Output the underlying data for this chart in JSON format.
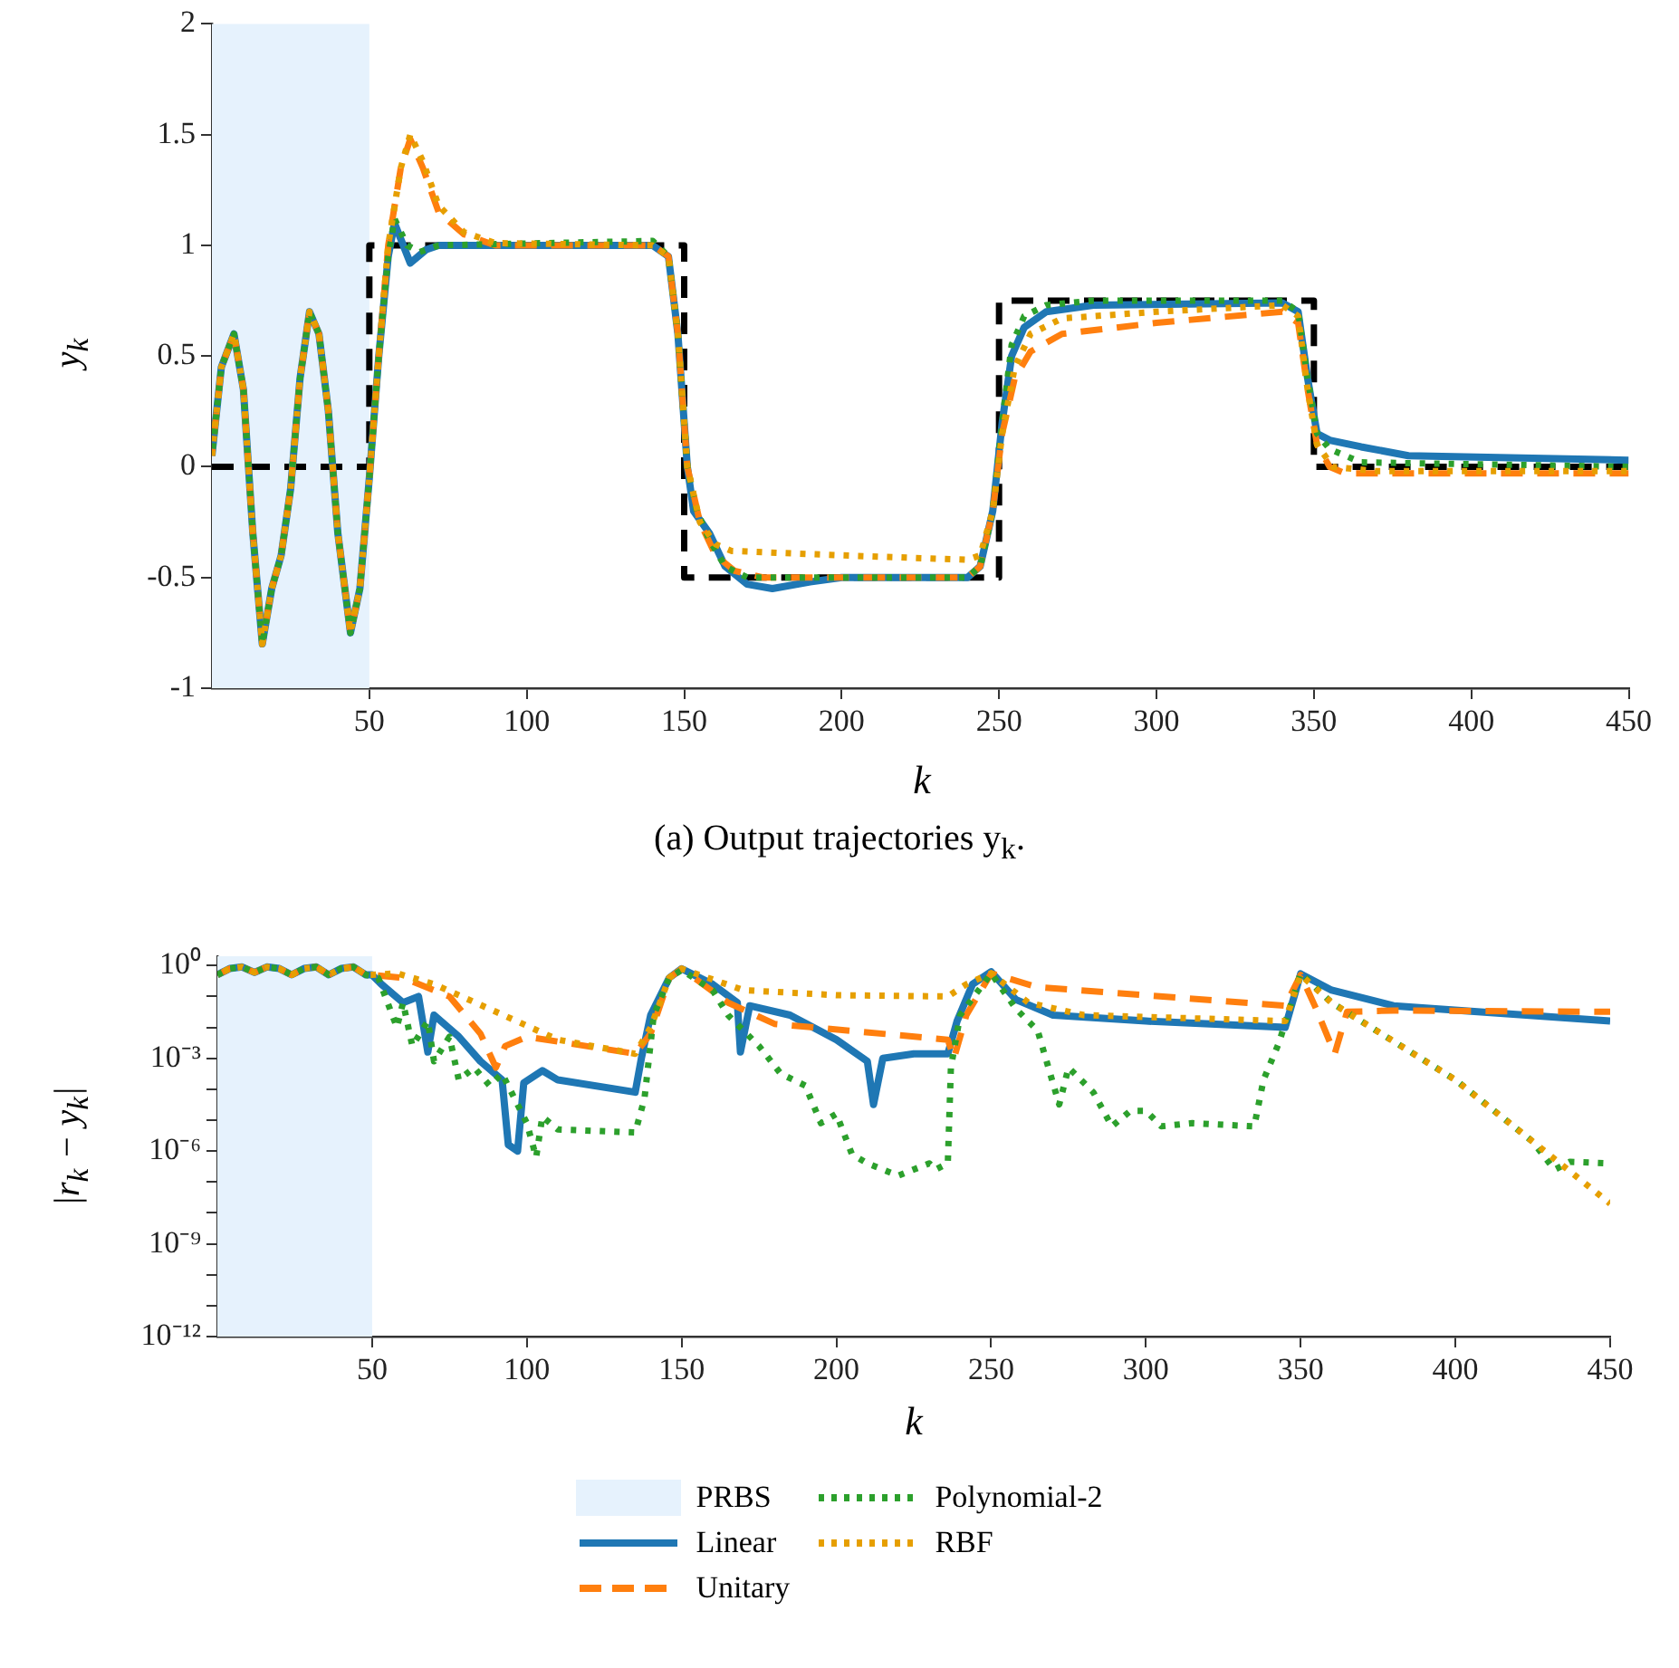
{
  "chart_data": [
    {
      "type": "line",
      "xlabel": "k",
      "ylabel": "y$_{k}$",
      "annotations": [
        "(a) Output trajectories y$_{k}$."
      ],
      "xlim": [
        0,
        450
      ],
      "ylim": [
        -1,
        2
      ],
      "xticks": [
        50,
        100,
        150,
        200,
        250,
        300,
        350,
        400,
        450
      ],
      "yticks": [
        -1,
        -0.5,
        0,
        0.5,
        1,
        1.5,
        2
      ],
      "legend": false,
      "bands": [
        {
          "axis": "x",
          "from": 0,
          "to": 50,
          "color": "#e6f2fd"
        }
      ],
      "series": [
        {
          "color": "#000000",
          "line_style": "dashed",
          "x": [
            0,
            50,
            50,
            150,
            150,
            250,
            250,
            350,
            350,
            450
          ],
          "values": [
            0,
            0,
            1,
            1,
            -0.5,
            -0.5,
            0.75,
            0.75,
            0,
            0
          ]
        },
        {
          "color": "#1f77b4",
          "line_style": "solid",
          "x": [
            0,
            3,
            7,
            10,
            13,
            16,
            19,
            22,
            25,
            28,
            31,
            34,
            37,
            40,
            44,
            47,
            50,
            53,
            56,
            58,
            63,
            68,
            72,
            140,
            145,
            148,
            151,
            153,
            158,
            163,
            170,
            178,
            190,
            200,
            240,
            244,
            248,
            251,
            254,
            258,
            265,
            280,
            340,
            345,
            348,
            351,
            355,
            365,
            380,
            450
          ],
          "values": [
            0.05,
            0.45,
            0.6,
            0.35,
            -0.3,
            -0.8,
            -0.55,
            -0.4,
            -0.1,
            0.4,
            0.7,
            0.6,
            0.25,
            -0.3,
            -0.75,
            -0.55,
            -0.05,
            0.5,
            0.95,
            1.1,
            0.92,
            0.98,
            1,
            1,
            0.95,
            0.6,
            0,
            -0.2,
            -0.3,
            -0.45,
            -0.53,
            -0.55,
            -0.52,
            -0.5,
            -0.5,
            -0.45,
            -0.2,
            0.2,
            0.5,
            0.63,
            0.7,
            0.73,
            0.74,
            0.7,
            0.4,
            0.15,
            0.12,
            0.09,
            0.05,
            0.03
          ]
        },
        {
          "color": "#ff7f0e",
          "line_style": "dashed",
          "x": [
            0,
            3,
            7,
            10,
            13,
            16,
            19,
            22,
            25,
            28,
            31,
            34,
            37,
            40,
            44,
            47,
            50,
            53,
            56,
            60,
            63,
            67,
            72,
            80,
            90,
            140,
            145,
            148,
            151,
            155,
            160,
            166,
            175,
            240,
            244,
            248,
            251,
            255,
            260,
            270,
            300,
            340,
            345,
            348,
            351,
            355,
            360,
            450
          ],
          "values": [
            0.05,
            0.45,
            0.6,
            0.35,
            -0.3,
            -0.8,
            -0.55,
            -0.4,
            -0.1,
            0.4,
            0.7,
            0.6,
            0.25,
            -0.3,
            -0.75,
            -0.55,
            -0.05,
            0.5,
            1,
            1.35,
            1.48,
            1.35,
            1.15,
            1.05,
            1,
            1,
            0.95,
            0.6,
            0,
            -0.25,
            -0.4,
            -0.47,
            -0.5,
            -0.5,
            -0.45,
            -0.2,
            0.15,
            0.4,
            0.52,
            0.6,
            0.65,
            0.7,
            0.65,
            0.35,
            0.1,
            0,
            -0.03,
            -0.03
          ]
        },
        {
          "color": "#2ca02c",
          "line_style": "dotted",
          "x": [
            0,
            3,
            7,
            10,
            13,
            16,
            19,
            22,
            25,
            28,
            31,
            34,
            37,
            40,
            44,
            47,
            50,
            53,
            56,
            58,
            62,
            66,
            72,
            140,
            145,
            148,
            151,
            154,
            158,
            163,
            170,
            240,
            244,
            248,
            251,
            254,
            258,
            265,
            280,
            340,
            345,
            348,
            351,
            355,
            365,
            450
          ],
          "values": [
            0.05,
            0.45,
            0.6,
            0.35,
            -0.3,
            -0.8,
            -0.55,
            -0.4,
            -0.1,
            0.4,
            0.7,
            0.6,
            0.25,
            -0.3,
            -0.75,
            -0.55,
            -0.05,
            0.5,
            0.95,
            1.12,
            1,
            0.97,
            1,
            1.02,
            0.95,
            0.6,
            0,
            -0.2,
            -0.33,
            -0.45,
            -0.5,
            -0.5,
            -0.45,
            -0.2,
            0.2,
            0.55,
            0.68,
            0.73,
            0.75,
            0.75,
            0.7,
            0.4,
            0.15,
            0.08,
            0.02,
            0
          ]
        },
        {
          "color": "#e69f00",
          "line_style": "dotted",
          "x": [
            0,
            3,
            7,
            10,
            13,
            16,
            19,
            22,
            25,
            28,
            31,
            34,
            37,
            40,
            44,
            47,
            50,
            53,
            56,
            60,
            63,
            67,
            72,
            80,
            90,
            140,
            145,
            148,
            151,
            155,
            160,
            165,
            200,
            240,
            244,
            248,
            251,
            255,
            260,
            270,
            300,
            340,
            345,
            348,
            351,
            356,
            370,
            450
          ],
          "values": [
            0.05,
            0.45,
            0.6,
            0.35,
            -0.3,
            -0.8,
            -0.55,
            -0.4,
            -0.1,
            0.4,
            0.7,
            0.6,
            0.25,
            -0.3,
            -0.75,
            -0.55,
            -0.05,
            0.5,
            1,
            1.35,
            1.5,
            1.38,
            1.18,
            1.06,
            1.01,
            1,
            0.95,
            0.6,
            0,
            -0.25,
            -0.35,
            -0.38,
            -0.4,
            -0.42,
            -0.4,
            -0.2,
            0.15,
            0.45,
            0.6,
            0.67,
            0.7,
            0.73,
            0.68,
            0.35,
            0.1,
            0,
            -0.02,
            -0.02
          ]
        }
      ]
    },
    {
      "type": "line",
      "xlabel": "k",
      "ylabel": "|r$_{k}$ − y$_{k}$|",
      "log": "y",
      "xlim": [
        0,
        450
      ],
      "ylim": [
        1e-12,
        2
      ],
      "xticks": [
        50,
        100,
        150,
        200,
        250,
        300,
        350,
        400,
        450
      ],
      "yticks": [
        {
          "value": 1,
          "label": "10⁰"
        },
        {
          "value": 0.1,
          "label": null
        },
        {
          "value": 0.01,
          "label": null
        },
        {
          "value": 0.001,
          "label": "10⁻³"
        },
        {
          "value": 0.0001,
          "label": null
        },
        {
          "value": 1e-05,
          "label": null
        },
        {
          "value": 1e-06,
          "label": "10⁻⁶"
        },
        {
          "value": 1e-07,
          "label": null
        },
        {
          "value": 1e-08,
          "label": null
        },
        {
          "value": 1e-09,
          "label": "10⁻⁹"
        },
        {
          "value": 1e-10,
          "label": null
        },
        {
          "value": 1e-11,
          "label": null
        },
        {
          "value": 1e-12,
          "label": "10⁻¹²"
        }
      ],
      "legend": "bottom",
      "bands": [
        {
          "axis": "x",
          "from": 0,
          "to": 50,
          "label": "PRBS",
          "color": "#e6f2fd"
        }
      ],
      "series": [
        {
          "name": "Linear",
          "color": "#1f77b4",
          "line_style": "solid",
          "x": [
            0,
            4,
            8,
            12,
            16,
            20,
            24,
            28,
            32,
            36,
            40,
            44,
            48,
            50,
            53,
            60,
            65,
            68,
            70,
            78,
            85,
            92,
            94,
            97,
            99,
            105,
            110,
            135,
            137,
            140,
            146,
            150,
            160,
            168,
            169,
            172,
            185,
            200,
            210,
            212,
            215,
            225,
            236,
            239,
            244,
            250,
            258,
            270,
            300,
            345,
            350,
            360,
            380,
            450
          ],
          "values": [
            0.5,
            0.8,
            0.9,
            0.6,
            0.9,
            0.8,
            0.5,
            0.8,
            0.9,
            0.5,
            0.8,
            0.9,
            0.5,
            0.5,
            0.25,
            0.063,
            0.1,
            0.0016,
            0.025,
            0.005,
            0.0008,
            0.0002,
            1.6e-06,
            1e-06,
            0.00016,
            0.0004,
            0.0002,
            8e-05,
            0.001,
            0.025,
            0.4,
            0.79,
            0.25,
            0.063,
            0.0016,
            0.05,
            0.025,
            0.004,
            0.0008,
            3.2e-05,
            0.001,
            0.0014,
            0.0014,
            0.016,
            0.25,
            0.63,
            0.079,
            0.025,
            0.016,
            0.01,
            0.54,
            0.16,
            0.05,
            0.016
          ]
        },
        {
          "name": "Unitary",
          "color": "#ff7f0e",
          "line_style": "dashed",
          "x": [
            0,
            4,
            8,
            12,
            16,
            20,
            24,
            28,
            32,
            36,
            40,
            44,
            48,
            50,
            60,
            75,
            85,
            90,
            93,
            100,
            135,
            140,
            146,
            150,
            165,
            180,
            236,
            238,
            242,
            250,
            265,
            345,
            350,
            355,
            361,
            365,
            380,
            450
          ],
          "values": [
            0.5,
            0.8,
            0.9,
            0.6,
            0.9,
            0.8,
            0.5,
            0.8,
            0.9,
            0.5,
            0.8,
            0.9,
            0.5,
            0.5,
            0.4,
            0.1,
            0.0063,
            0.0005,
            0.0025,
            0.005,
            0.0014,
            0.0063,
            0.4,
            0.79,
            0.063,
            0.013,
            0.004,
            0.001,
            0.025,
            0.56,
            0.2,
            0.05,
            0.5,
            0.04,
            0.0014,
            0.032,
            0.035,
            0.032
          ]
        },
        {
          "name": "Polynomial-2",
          "color": "#2ca02c",
          "line_style": "dotted",
          "x": [
            0,
            4,
            8,
            12,
            16,
            20,
            24,
            28,
            32,
            36,
            40,
            44,
            48,
            52,
            58,
            60,
            63,
            68,
            70,
            75,
            78,
            83,
            88,
            92,
            100,
            103,
            105,
            110,
            135,
            138,
            141,
            146,
            150,
            160,
            165,
            175,
            182,
            190,
            195,
            200,
            205,
            210,
            220,
            230,
            232,
            236,
            237,
            240,
            250,
            258,
            265,
            272,
            275,
            283,
            289,
            295,
            300,
            305,
            315,
            335,
            338,
            343,
            350,
            360,
            400,
            425,
            432,
            437,
            450
          ],
          "values": [
            0.5,
            0.8,
            0.9,
            0.6,
            0.9,
            0.8,
            0.5,
            0.8,
            0.9,
            0.5,
            0.8,
            0.9,
            0.5,
            0.4,
            0.01,
            0.063,
            0.0025,
            0.016,
            0.0008,
            0.005,
            0.0002,
            0.0005,
            0.00013,
            0.00032,
            8e-06,
            6.3e-07,
            1.3e-05,
            5e-06,
            4e-06,
            5e-05,
            0.025,
            0.4,
            0.72,
            0.16,
            0.025,
            0.0025,
            0.00032,
            0.00013,
            8e-06,
            1.6e-05,
            8e-07,
            4e-07,
            1.6e-07,
            4e-07,
            2.5e-07,
            4e-07,
            0.0005,
            0.025,
            0.56,
            0.04,
            0.008,
            3.2e-05,
            0.0005,
            8e-05,
            6.3e-06,
            2e-05,
            2e-05,
            6.3e-06,
            8e-06,
            6.3e-06,
            0.0002,
            0.0032,
            0.56,
            0.063,
            0.0002,
            2e-06,
            2.5e-07,
            4.5e-07,
            4e-07
          ]
        },
        {
          "name": "RBF",
          "color": "#e69f00",
          "line_style": "dotted",
          "x": [
            0,
            4,
            8,
            12,
            16,
            20,
            24,
            28,
            32,
            36,
            40,
            44,
            48,
            50,
            58,
            70,
            90,
            110,
            135,
            140,
            146,
            150,
            170,
            200,
            236,
            242,
            250,
            262,
            280,
            345,
            350,
            360,
            400,
            430,
            450
          ],
          "values": [
            0.5,
            0.8,
            0.9,
            0.6,
            0.9,
            0.8,
            0.5,
            0.8,
            0.9,
            0.5,
            0.8,
            0.9,
            0.5,
            0.5,
            0.56,
            0.25,
            0.032,
            0.004,
            0.0014,
            0.01,
            0.4,
            0.79,
            0.16,
            0.11,
            0.1,
            0.25,
            0.56,
            0.063,
            0.025,
            0.016,
            0.5,
            0.063,
            0.0002,
            8e-07,
            2e-08
          ]
        }
      ]
    }
  ]
}
